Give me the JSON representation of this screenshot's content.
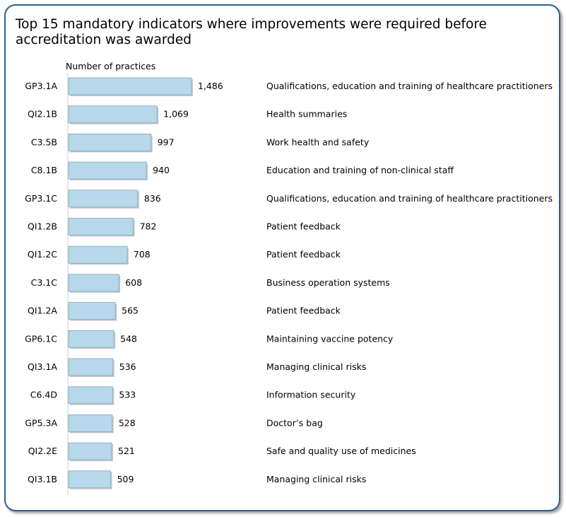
{
  "chart_data": {
    "type": "bar",
    "orientation": "horizontal",
    "title": "Top 15 mandatory indicators where improvements were required before accreditation was awarded",
    "ylabel": "Number of practices",
    "xlim": [
      0,
      1486
    ],
    "grid": false,
    "legend": "none",
    "bar_color": "#b7d7ea",
    "bar_edge_color": "#7fa9c4",
    "categories": [
      "GP3.1A",
      "QI2.1B",
      "C3.5B",
      "C8.1B",
      "GP3.1C",
      "QI1.2B",
      "QI1.2C",
      "C3.1C",
      "QI1.2A",
      "GP6.1C",
      "QI3.1A",
      "C6.4D",
      "GP5.3A",
      "QI2.2E",
      "QI3.1B"
    ],
    "values": [
      1486,
      1069,
      997,
      940,
      836,
      782,
      708,
      608,
      565,
      548,
      536,
      533,
      528,
      521,
      509
    ],
    "value_labels": [
      "1,486",
      "1,069",
      "997",
      "940",
      "836",
      "782",
      "708",
      "608",
      "565",
      "548",
      "536",
      "533",
      "528",
      "521",
      "509"
    ],
    "descriptions": [
      "Qualifications, education and training of healthcare practitioners",
      "Health summaries",
      "Work health and safety",
      "Education and training of non-clinical staff",
      "Qualifications, education and training of healthcare practitioners",
      "Patient feedback",
      "Patient feedback",
      "Business operation systems",
      "Patient feedback",
      "Maintaining vaccine potency",
      "Managing clinical risks",
      "Information security",
      "Doctor’s bag",
      "Safe and quality use of medicines",
      "Managing clinical risks"
    ]
  }
}
